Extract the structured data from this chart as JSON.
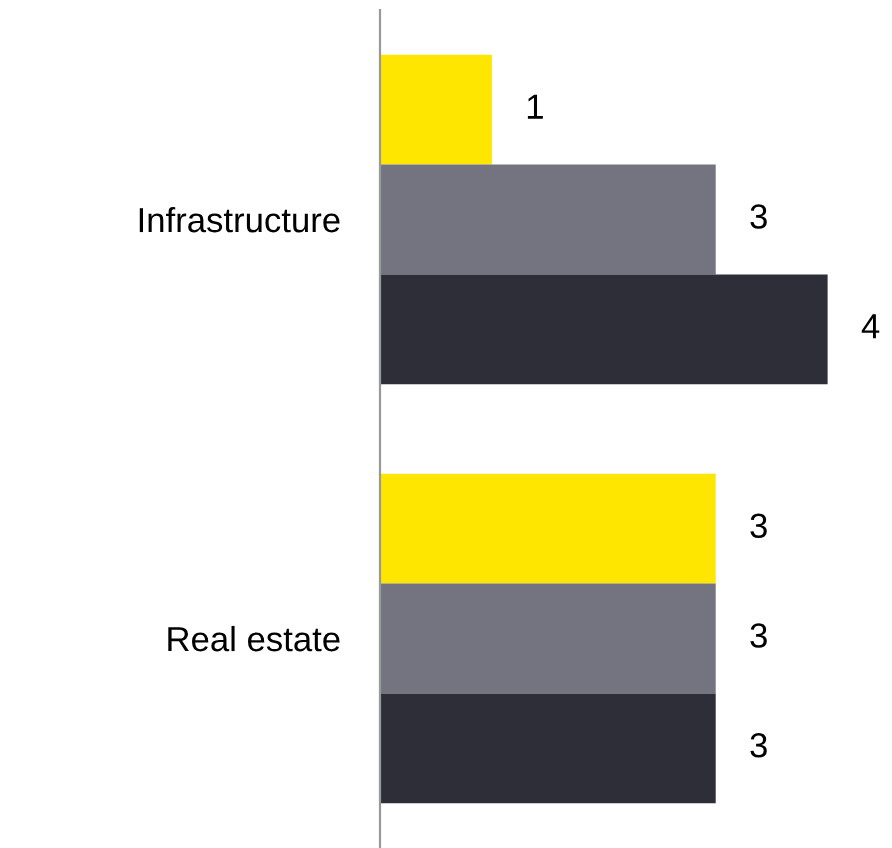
{
  "chart_data": {
    "type": "bar",
    "orientation": "horizontal",
    "categories": [
      "Infrastructure",
      "Real estate"
    ],
    "series": [
      {
        "color": "#ffe600",
        "values": [
          1,
          3
        ]
      },
      {
        "color": "#747480",
        "values": [
          3,
          3
        ]
      },
      {
        "color": "#2e2e38",
        "values": [
          4,
          3
        ]
      }
    ],
    "data_labels": true,
    "grid": false,
    "legend": false,
    "tick_labels": "y"
  }
}
